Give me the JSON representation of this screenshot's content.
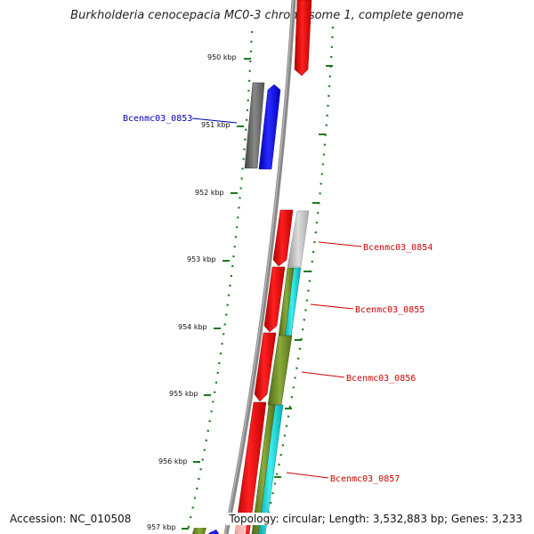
{
  "title": "Burkholderia cenocepacia MC0-3 chromosome 1, complete genome",
  "ruler_labels": [
    "950 kbp",
    "951 kbp",
    "952 kbp",
    "953 kbp",
    "954 kbp",
    "955 kbp",
    "956 kbp",
    "957 kbp"
  ],
  "gene_labels": [
    {
      "text": "Bcenmc03_0853",
      "color": "#0000aa"
    },
    {
      "text": "Bcenmc03_0854",
      "color": "#cc0000"
    },
    {
      "text": "Bcenmc03_0855",
      "color": "#cc0000"
    },
    {
      "text": "Bcenmc03_0856",
      "color": "#cc0000"
    },
    {
      "text": "Bcenmc03_0857",
      "color": "#cc0000"
    }
  ],
  "footer": {
    "accession": "Accession: NC_010508",
    "summary": "Topology: circular; Length: 3,532,883 bp; Genes: 3,233"
  },
  "colors": {
    "forward_gene": "#ee0000",
    "reverse_gene": "#0000ff",
    "gray_feature": "#666666",
    "light_gray_feature": "#bbbbbb",
    "olive_feature": "#6b8e23",
    "cyan_feature": "#00cccc",
    "tick_green": "#1a7a1a",
    "backbone": "#888888"
  }
}
